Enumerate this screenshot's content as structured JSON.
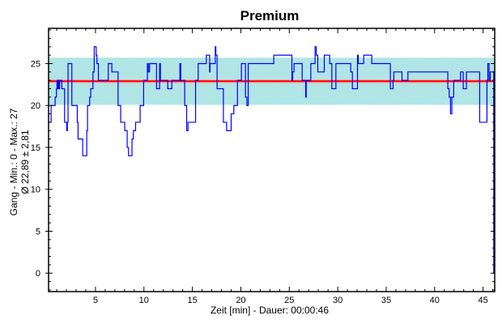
{
  "chart_data": {
    "type": "line",
    "title": "Premium",
    "xlabel": "Zeit [min] - Dauer: 00:00:46",
    "ylabel_lines": [
      "Gang - Min.: 0 - Max.: 27",
      "Ø 22,89 ± 2,81"
    ],
    "xlim": [
      0.16,
      46.2
    ],
    "ylim": [
      -2.2,
      29.2
    ],
    "x_ticks": [
      5,
      10,
      15,
      20,
      25,
      30,
      35,
      40,
      45
    ],
    "y_ticks": [
      0,
      5,
      10,
      15,
      20,
      25
    ],
    "grid": false,
    "mean": 22.89,
    "std": 2.81,
    "colors": {
      "series": "#0000ff",
      "mean": "#ff0000",
      "band": "#8fd6d8",
      "band_light": "#d2f4f4"
    },
    "series": [
      {
        "name": "Gang",
        "step": true,
        "points": [
          [
            0.1,
            18
          ],
          [
            0.42,
            20
          ],
          [
            0.84,
            21
          ],
          [
            0.97,
            22
          ],
          [
            1.03,
            23
          ],
          [
            1.11,
            22
          ],
          [
            1.17,
            23
          ],
          [
            1.25,
            22
          ],
          [
            1.3,
            23
          ],
          [
            1.53,
            22
          ],
          [
            1.81,
            18
          ],
          [
            2.03,
            17
          ],
          [
            2.1,
            18
          ],
          [
            2.17,
            25
          ],
          [
            2.56,
            20
          ],
          [
            3.12,
            18
          ],
          [
            3.2,
            16
          ],
          [
            3.68,
            14
          ],
          [
            4.1,
            17
          ],
          [
            4.18,
            20
          ],
          [
            4.4,
            21
          ],
          [
            4.51,
            22
          ],
          [
            4.74,
            24
          ],
          [
            4.87,
            27
          ],
          [
            5.07,
            26
          ],
          [
            5.15,
            25
          ],
          [
            5.3,
            23
          ],
          [
            6.32,
            25
          ],
          [
            6.69,
            24
          ],
          [
            7.33,
            20
          ],
          [
            7.6,
            18
          ],
          [
            8.02,
            17
          ],
          [
            8.27,
            15
          ],
          [
            8.41,
            14
          ],
          [
            8.77,
            16
          ],
          [
            8.91,
            17
          ],
          [
            9.14,
            18
          ],
          [
            9.61,
            20
          ],
          [
            9.97,
            23
          ],
          [
            10.36,
            25
          ],
          [
            10.45,
            24
          ],
          [
            10.58,
            25
          ],
          [
            11.3,
            22
          ],
          [
            11.62,
            25
          ],
          [
            11.7,
            23
          ],
          [
            12.46,
            22
          ],
          [
            12.88,
            23
          ],
          [
            13.71,
            25
          ],
          [
            13.8,
            23
          ],
          [
            14.21,
            20
          ],
          [
            14.41,
            17
          ],
          [
            14.55,
            18
          ],
          [
            15.33,
            23
          ],
          [
            15.6,
            25
          ],
          [
            16.44,
            26
          ],
          [
            16.78,
            24
          ],
          [
            16.82,
            25
          ],
          [
            17.36,
            27
          ],
          [
            17.42,
            26
          ],
          [
            17.55,
            22
          ],
          [
            18.2,
            18
          ],
          [
            18.53,
            17
          ],
          [
            19.0,
            19
          ],
          [
            19.28,
            20
          ],
          [
            19.65,
            23
          ],
          [
            20.06,
            25
          ],
          [
            20.48,
            21
          ],
          [
            20.62,
            20
          ],
          [
            20.76,
            25
          ],
          [
            23.4,
            26
          ],
          [
            25.27,
            23
          ],
          [
            25.35,
            24
          ],
          [
            25.49,
            25
          ],
          [
            26.33,
            23
          ],
          [
            26.69,
            21
          ],
          [
            26.75,
            23
          ],
          [
            27.22,
            25
          ],
          [
            27.66,
            27
          ],
          [
            27.78,
            26
          ],
          [
            27.94,
            24
          ],
          [
            28.61,
            26
          ],
          [
            29.17,
            25
          ],
          [
            29.39,
            22
          ],
          [
            29.81,
            25
          ],
          [
            31.34,
            24
          ],
          [
            31.51,
            22
          ],
          [
            32.04,
            26
          ],
          [
            32.12,
            25
          ],
          [
            32.68,
            26
          ],
          [
            33.51,
            25
          ],
          [
            35.43,
            22
          ],
          [
            35.71,
            23
          ],
          [
            35.79,
            24
          ],
          [
            36.63,
            23
          ],
          [
            37.24,
            24
          ],
          [
            41.36,
            22
          ],
          [
            41.5,
            21
          ],
          [
            41.64,
            19
          ],
          [
            41.78,
            21
          ],
          [
            41.97,
            23
          ],
          [
            42.67,
            24
          ],
          [
            42.95,
            22
          ],
          [
            43.28,
            24
          ],
          [
            44.65,
            18
          ],
          [
            45.4,
            23
          ],
          [
            45.49,
            25
          ],
          [
            45.62,
            23
          ],
          [
            45.74,
            24
          ],
          [
            46.1,
            0
          ]
        ]
      }
    ]
  }
}
